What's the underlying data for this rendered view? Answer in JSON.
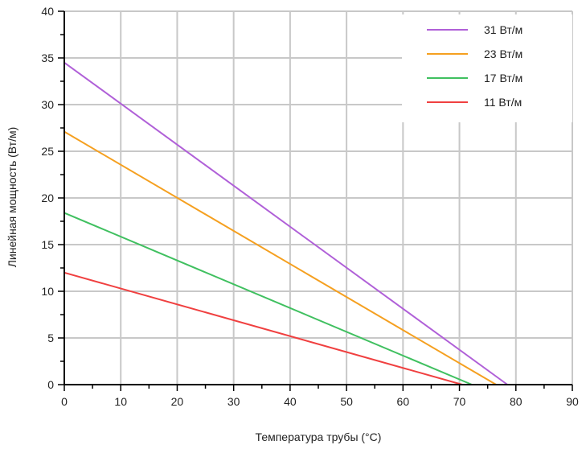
{
  "chart_data": {
    "type": "line",
    "title": "",
    "xlabel": "Температура трубы (°C)",
    "ylabel": "Линейная мощность (Вт/м)",
    "xlim": [
      0,
      90
    ],
    "ylim": [
      0,
      40
    ],
    "xticks": [
      0,
      10,
      20,
      30,
      40,
      50,
      60,
      70,
      80,
      90
    ],
    "yticks": [
      0,
      5,
      10,
      15,
      20,
      25,
      30,
      35,
      40
    ],
    "grid": true,
    "legend_position": "top-right",
    "series": [
      {
        "name": "31 Вт/м",
        "color": "#b060d8",
        "x": [
          0,
          78.5
        ],
        "y": [
          34.5,
          0
        ]
      },
      {
        "name": "23 Вт/м",
        "color": "#f5a020",
        "x": [
          0,
          76.5
        ],
        "y": [
          27.1,
          0
        ]
      },
      {
        "name": "17 Вт/м",
        "color": "#40c060",
        "x": [
          0,
          72.2
        ],
        "y": [
          18.4,
          0
        ]
      },
      {
        "name": "11 Вт/м",
        "color": "#f04040",
        "x": [
          0,
          70.5
        ],
        "y": [
          12.0,
          0
        ]
      }
    ]
  }
}
